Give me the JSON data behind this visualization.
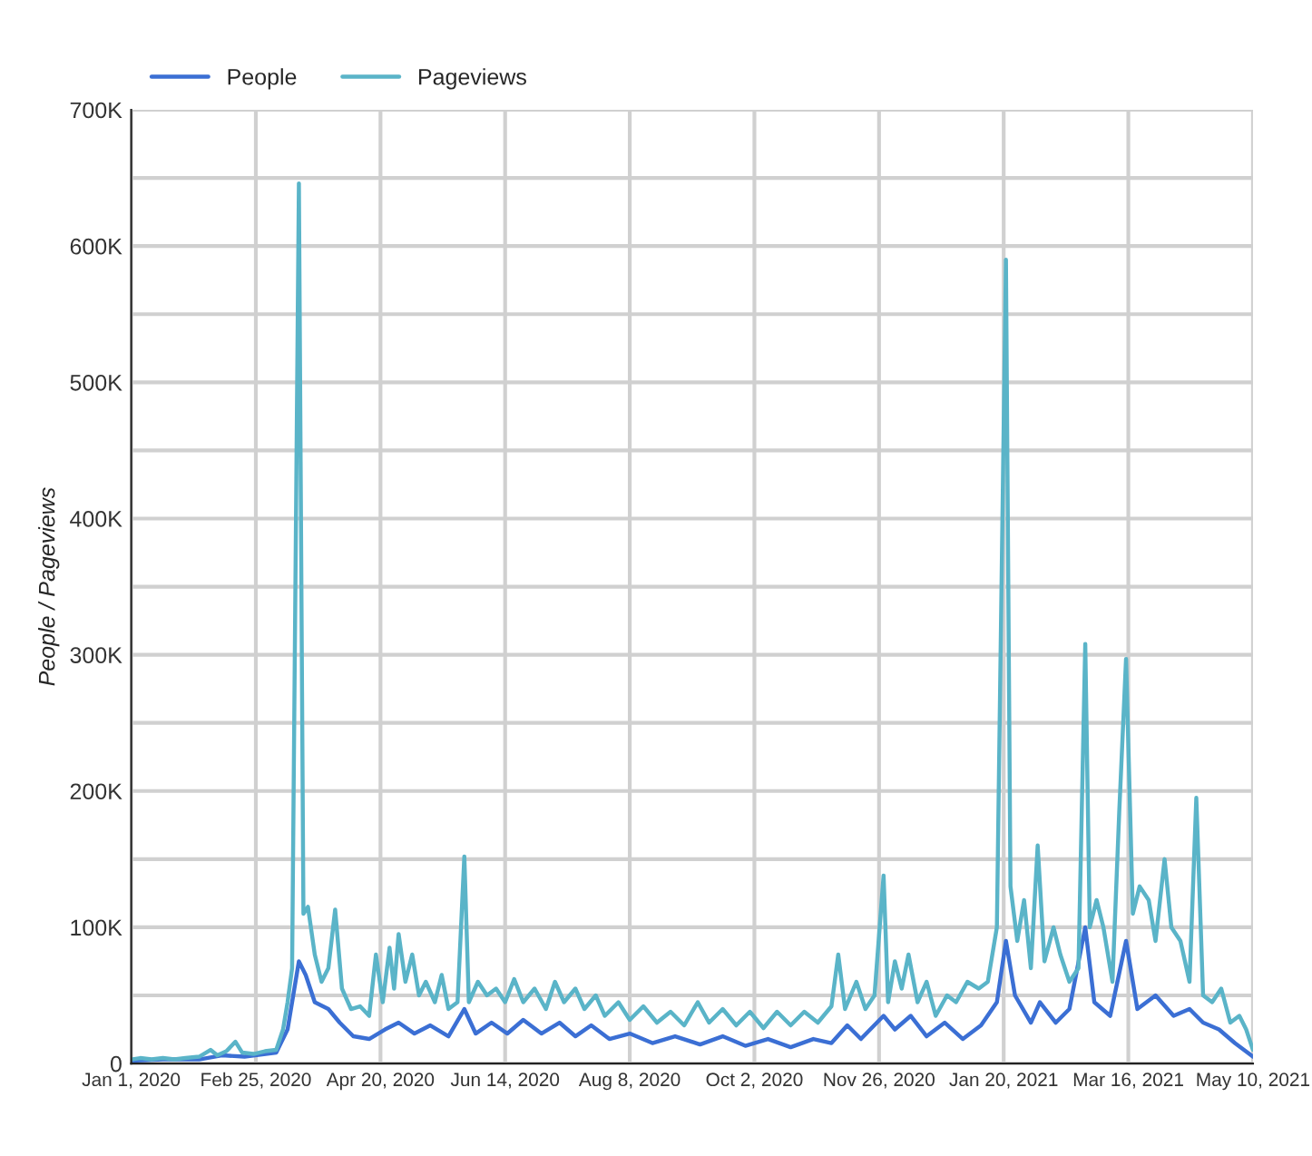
{
  "chart_data": {
    "type": "line",
    "ylabel": "People / Pageviews",
    "legend": "top left",
    "grid": true,
    "marker": "none",
    "line_style": "solid",
    "xlim": [
      "2020-01-01",
      "2021-05-10"
    ],
    "xticks": [
      {
        "value": "2020-01-01",
        "label": "Jan 1, 2020"
      },
      {
        "value": "2020-02-25",
        "label": "Feb 25, 2020"
      },
      {
        "value": "2020-04-20",
        "label": "Apr 20, 2020"
      },
      {
        "value": "2020-06-14",
        "label": "Jun 14, 2020"
      },
      {
        "value": "2020-08-08",
        "label": "Aug 8, 2020"
      },
      {
        "value": "2020-10-02",
        "label": "Oct 2, 2020"
      },
      {
        "value": "2020-11-26",
        "label": "Nov 26, 2020"
      },
      {
        "value": "2021-01-20",
        "label": "Jan 20, 2021"
      },
      {
        "value": "2021-03-16",
        "label": "Mar 16, 2021"
      },
      {
        "value": "2021-05-10",
        "label": "May 10, 2021"
      }
    ],
    "ylim": [
      0,
      700000
    ],
    "yticks": [
      {
        "value": 0,
        "label": "0"
      },
      {
        "value": 50000,
        "label": null
      },
      {
        "value": 100000,
        "label": "100K"
      },
      {
        "value": 150000,
        "label": null
      },
      {
        "value": 200000,
        "label": "200K"
      },
      {
        "value": 250000,
        "label": null
      },
      {
        "value": 300000,
        "label": "300K"
      },
      {
        "value": 350000,
        "label": null
      },
      {
        "value": 400000,
        "label": "400K"
      },
      {
        "value": 450000,
        "label": null
      },
      {
        "value": 500000,
        "label": "500K"
      },
      {
        "value": 550000,
        "label": null
      },
      {
        "value": 600000,
        "label": "600K"
      },
      {
        "value": 650000,
        "label": null
      },
      {
        "value": 700000,
        "label": "700K"
      }
    ],
    "series": [
      {
        "name": "People",
        "color": "#3b6fd4",
        "x": [
          "2020-01-01",
          "2020-01-15",
          "2020-01-31",
          "2020-02-10",
          "2020-02-20",
          "2020-03-05",
          "2020-03-10",
          "2020-03-15",
          "2020-03-18",
          "2020-03-22",
          "2020-03-28",
          "2020-04-02",
          "2020-04-08",
          "2020-04-15",
          "2020-04-22",
          "2020-04-28",
          "2020-05-05",
          "2020-05-12",
          "2020-05-20",
          "2020-05-27",
          "2020-06-01",
          "2020-06-08",
          "2020-06-15",
          "2020-06-22",
          "2020-06-30",
          "2020-07-08",
          "2020-07-15",
          "2020-07-22",
          "2020-07-30",
          "2020-08-08",
          "2020-08-18",
          "2020-08-28",
          "2020-09-08",
          "2020-09-18",
          "2020-09-28",
          "2020-10-08",
          "2020-10-18",
          "2020-10-28",
          "2020-11-05",
          "2020-11-12",
          "2020-11-18",
          "2020-11-28",
          "2020-12-03",
          "2020-12-10",
          "2020-12-17",
          "2020-12-25",
          "2021-01-02",
          "2021-01-10",
          "2021-01-17",
          "2021-01-21",
          "2021-01-25",
          "2021-02-01",
          "2021-02-05",
          "2021-02-12",
          "2021-02-18",
          "2021-02-25",
          "2021-03-01",
          "2021-03-08",
          "2021-03-15",
          "2021-03-20",
          "2021-03-28",
          "2021-04-05",
          "2021-04-12",
          "2021-04-18",
          "2021-04-25",
          "2021-05-02",
          "2021-05-10"
        ],
        "values": [
          2000,
          3000,
          3000,
          6000,
          5000,
          8000,
          25000,
          75000,
          65000,
          45000,
          40000,
          30000,
          20000,
          18000,
          25000,
          30000,
          22000,
          28000,
          20000,
          40000,
          22000,
          30000,
          22000,
          32000,
          22000,
          30000,
          20000,
          28000,
          18000,
          22000,
          15000,
          20000,
          14000,
          20000,
          13000,
          18000,
          12000,
          18000,
          15000,
          28000,
          18000,
          35000,
          25000,
          35000,
          20000,
          30000,
          18000,
          28000,
          45000,
          90000,
          50000,
          30000,
          45000,
          30000,
          40000,
          100000,
          45000,
          35000,
          90000,
          40000,
          50000,
          35000,
          40000,
          30000,
          25000,
          15000,
          5000
        ]
      },
      {
        "name": "Pageviews",
        "color": "#5ab4c8",
        "x": [
          "2020-01-01",
          "2020-01-05",
          "2020-01-10",
          "2020-01-15",
          "2020-01-20",
          "2020-01-25",
          "2020-01-31",
          "2020-02-05",
          "2020-02-08",
          "2020-02-12",
          "2020-02-16",
          "2020-02-19",
          "2020-02-24",
          "2020-02-29",
          "2020-03-05",
          "2020-03-08",
          "2020-03-10",
          "2020-03-12",
          "2020-03-15",
          "2020-03-17",
          "2020-03-19",
          "2020-03-22",
          "2020-03-25",
          "2020-03-28",
          "2020-03-31",
          "2020-04-03",
          "2020-04-07",
          "2020-04-11",
          "2020-04-15",
          "2020-04-18",
          "2020-04-21",
          "2020-04-24",
          "2020-04-26",
          "2020-04-28",
          "2020-05-01",
          "2020-05-04",
          "2020-05-07",
          "2020-05-10",
          "2020-05-14",
          "2020-05-17",
          "2020-05-20",
          "2020-05-24",
          "2020-05-27",
          "2020-05-29",
          "2020-06-02",
          "2020-06-06",
          "2020-06-10",
          "2020-06-14",
          "2020-06-18",
          "2020-06-22",
          "2020-06-27",
          "2020-07-02",
          "2020-07-06",
          "2020-07-10",
          "2020-07-15",
          "2020-07-19",
          "2020-07-24",
          "2020-07-28",
          "2020-08-03",
          "2020-08-08",
          "2020-08-14",
          "2020-08-20",
          "2020-08-26",
          "2020-09-01",
          "2020-09-07",
          "2020-09-12",
          "2020-09-18",
          "2020-09-24",
          "2020-09-30",
          "2020-10-06",
          "2020-10-12",
          "2020-10-18",
          "2020-10-24",
          "2020-10-30",
          "2020-11-05",
          "2020-11-08",
          "2020-11-11",
          "2020-11-16",
          "2020-11-20",
          "2020-11-24",
          "2020-11-28",
          "2020-11-30",
          "2020-12-03",
          "2020-12-06",
          "2020-12-09",
          "2020-12-13",
          "2020-12-17",
          "2020-12-21",
          "2020-12-26",
          "2020-12-30",
          "2021-01-04",
          "2021-01-09",
          "2021-01-13",
          "2021-01-17",
          "2021-01-21",
          "2021-01-23",
          "2021-01-26",
          "2021-01-29",
          "2021-02-01",
          "2021-02-04",
          "2021-02-07",
          "2021-02-11",
          "2021-02-14",
          "2021-02-18",
          "2021-02-22",
          "2021-02-25",
          "2021-02-27",
          "2021-03-02",
          "2021-03-05",
          "2021-03-09",
          "2021-03-12",
          "2021-03-15",
          "2021-03-18",
          "2021-03-21",
          "2021-03-25",
          "2021-03-28",
          "2021-04-01",
          "2021-04-04",
          "2021-04-08",
          "2021-04-12",
          "2021-04-15",
          "2021-04-18",
          "2021-04-22",
          "2021-04-26",
          "2021-04-30",
          "2021-05-04",
          "2021-05-07",
          "2021-05-10"
        ],
        "values": [
          3000,
          4000,
          3000,
          4000,
          3000,
          4000,
          5000,
          10000,
          6000,
          9000,
          16000,
          8000,
          7000,
          9000,
          10000,
          25000,
          45000,
          70000,
          646000,
          110000,
          115000,
          80000,
          60000,
          70000,
          113000,
          55000,
          40000,
          42000,
          35000,
          80000,
          45000,
          85000,
          55000,
          95000,
          60000,
          80000,
          50000,
          60000,
          45000,
          65000,
          40000,
          45000,
          152000,
          45000,
          60000,
          50000,
          55000,
          45000,
          62000,
          45000,
          55000,
          40000,
          60000,
          45000,
          55000,
          40000,
          50000,
          35000,
          45000,
          32000,
          42000,
          30000,
          38000,
          28000,
          45000,
          30000,
          40000,
          28000,
          38000,
          26000,
          38000,
          28000,
          38000,
          30000,
          42000,
          80000,
          40000,
          60000,
          40000,
          50000,
          138000,
          45000,
          75000,
          55000,
          80000,
          45000,
          60000,
          35000,
          50000,
          45000,
          60000,
          55000,
          60000,
          100000,
          590000,
          130000,
          90000,
          120000,
          70000,
          160000,
          75000,
          100000,
          80000,
          60000,
          70000,
          308000,
          100000,
          120000,
          100000,
          60000,
          185000,
          297000,
          110000,
          130000,
          120000,
          90000,
          150000,
          100000,
          90000,
          60000,
          195000,
          50000,
          45000,
          55000,
          30000,
          35000,
          25000,
          10000
        ]
      }
    ]
  }
}
